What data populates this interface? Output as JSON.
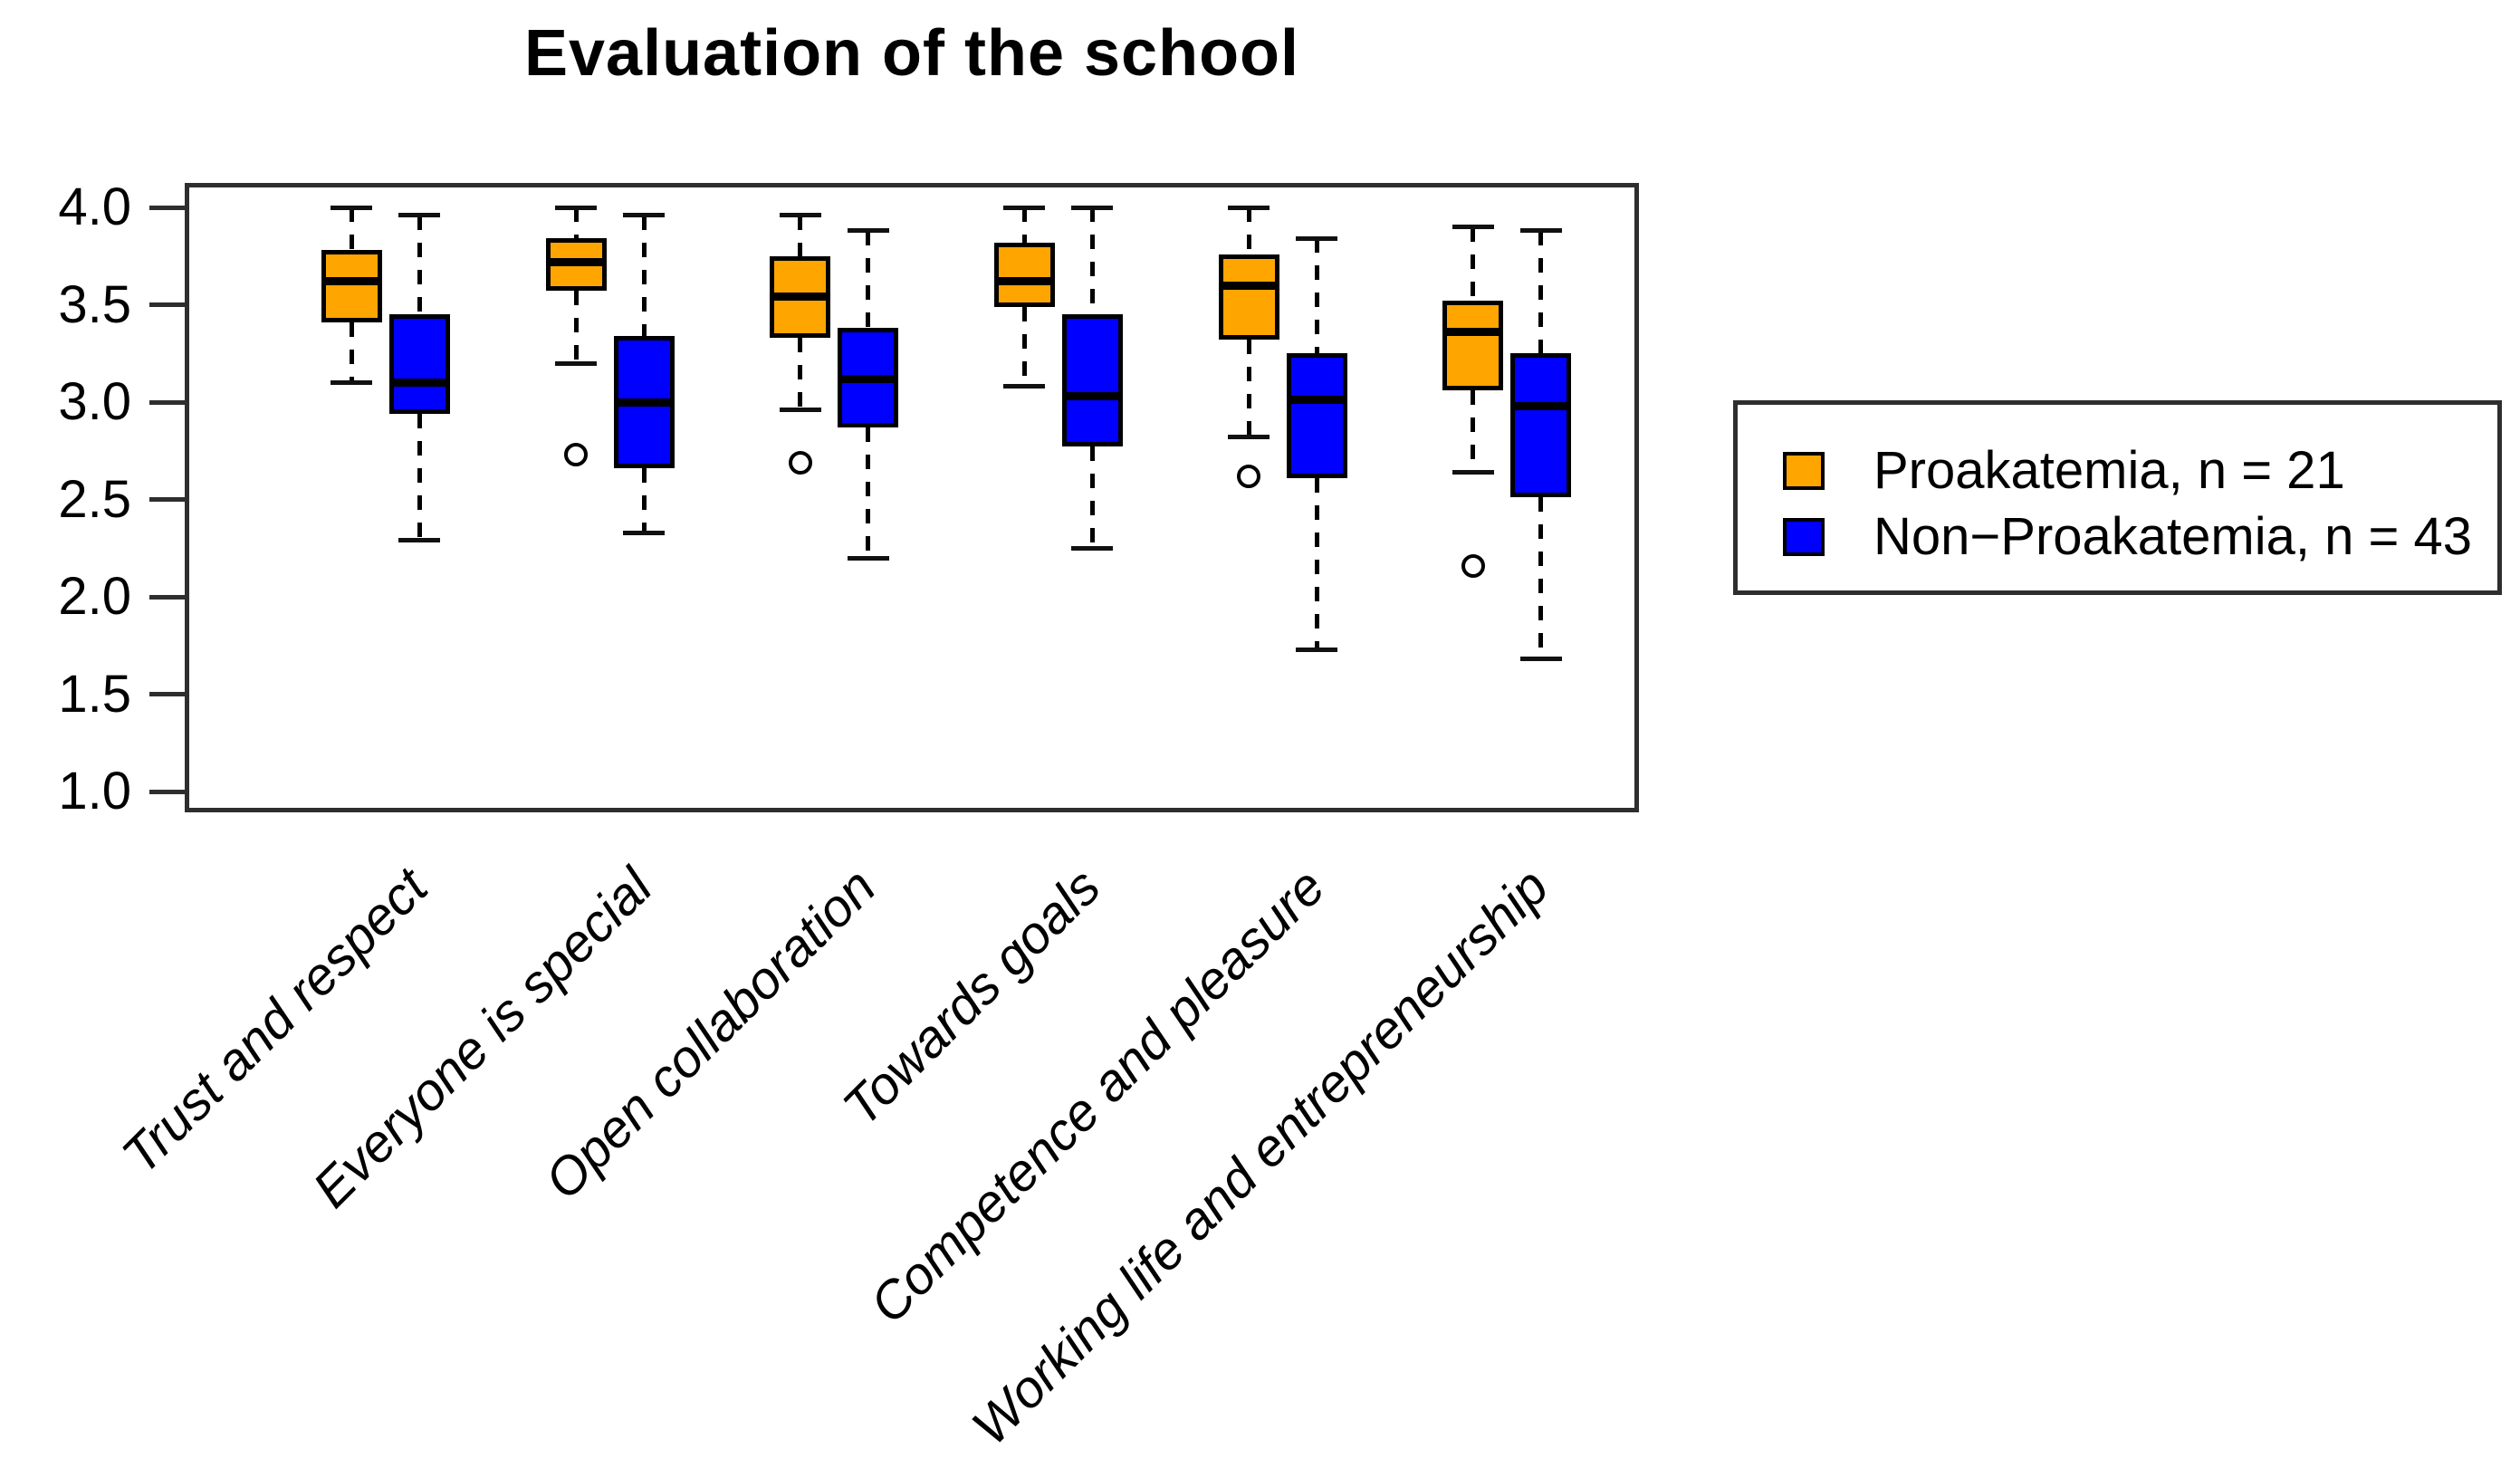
{
  "title": "Evaluation of the school",
  "legend": {
    "items": [
      {
        "label": "Proakatemia, n = 21",
        "color": "#FFA500"
      },
      {
        "label": "Non−Proakatemia, n = 43",
        "color": "#0000FF"
      }
    ]
  },
  "y_axis": {
    "tick_labels": [
      "4.0",
      "3.5",
      "3.0",
      "2.5",
      "2.0",
      "1.5",
      "1.0"
    ]
  },
  "chart_data": {
    "type": "boxplot",
    "title": "Evaluation of the school",
    "categories": [
      "Trust and respect",
      "Everyone is special",
      "Open collaboration",
      "Towards goals",
      "Competence and pleasure",
      "Working life and entrepreneurship"
    ],
    "ylabel": "",
    "xlabel": "",
    "ylim": [
      1.0,
      4.0
    ],
    "yticks": [
      4.0,
      3.5,
      3.0,
      2.5,
      2.0,
      1.5,
      1.0
    ],
    "grid": false,
    "legend_position": "right",
    "series": [
      {
        "name": "Proakatemia, n = 21",
        "color": "#FFA500",
        "boxes": [
          {
            "low": 3.1,
            "q1": 3.41,
            "median": 3.62,
            "q3": 3.78,
            "high": 4.0,
            "outliers": []
          },
          {
            "low": 3.2,
            "q1": 3.57,
            "median": 3.72,
            "q3": 3.84,
            "high": 4.0,
            "outliers": [
              2.73
            ]
          },
          {
            "low": 2.96,
            "q1": 3.33,
            "median": 3.54,
            "q3": 3.75,
            "high": 3.96,
            "outliers": [
              2.69
            ]
          },
          {
            "low": 3.08,
            "q1": 3.49,
            "median": 3.62,
            "q3": 3.82,
            "high": 4.0,
            "outliers": []
          },
          {
            "low": 2.82,
            "q1": 3.32,
            "median": 3.6,
            "q3": 3.76,
            "high": 4.0,
            "outliers": [
              2.62
            ]
          },
          {
            "low": 2.64,
            "q1": 3.06,
            "median": 3.36,
            "q3": 3.52,
            "high": 3.9,
            "outliers": [
              2.16
            ]
          }
        ]
      },
      {
        "name": "Non−Proakatemia, n = 43",
        "color": "#0000FF",
        "boxes": [
          {
            "low": 2.29,
            "q1": 2.94,
            "median": 3.1,
            "q3": 3.45,
            "high": 3.96,
            "outliers": []
          },
          {
            "low": 2.33,
            "q1": 2.66,
            "median": 3.0,
            "q3": 3.34,
            "high": 3.96,
            "outliers": []
          },
          {
            "low": 2.2,
            "q1": 2.87,
            "median": 3.12,
            "q3": 3.38,
            "high": 3.88,
            "outliers": []
          },
          {
            "low": 2.25,
            "q1": 2.77,
            "median": 3.03,
            "q3": 3.45,
            "high": 4.0,
            "outliers": []
          },
          {
            "low": 1.73,
            "q1": 2.61,
            "median": 3.01,
            "q3": 3.25,
            "high": 3.84,
            "outliers": []
          },
          {
            "low": 1.68,
            "q1": 2.51,
            "median": 2.98,
            "q3": 3.25,
            "high": 3.88,
            "outliers": []
          }
        ]
      }
    ]
  }
}
